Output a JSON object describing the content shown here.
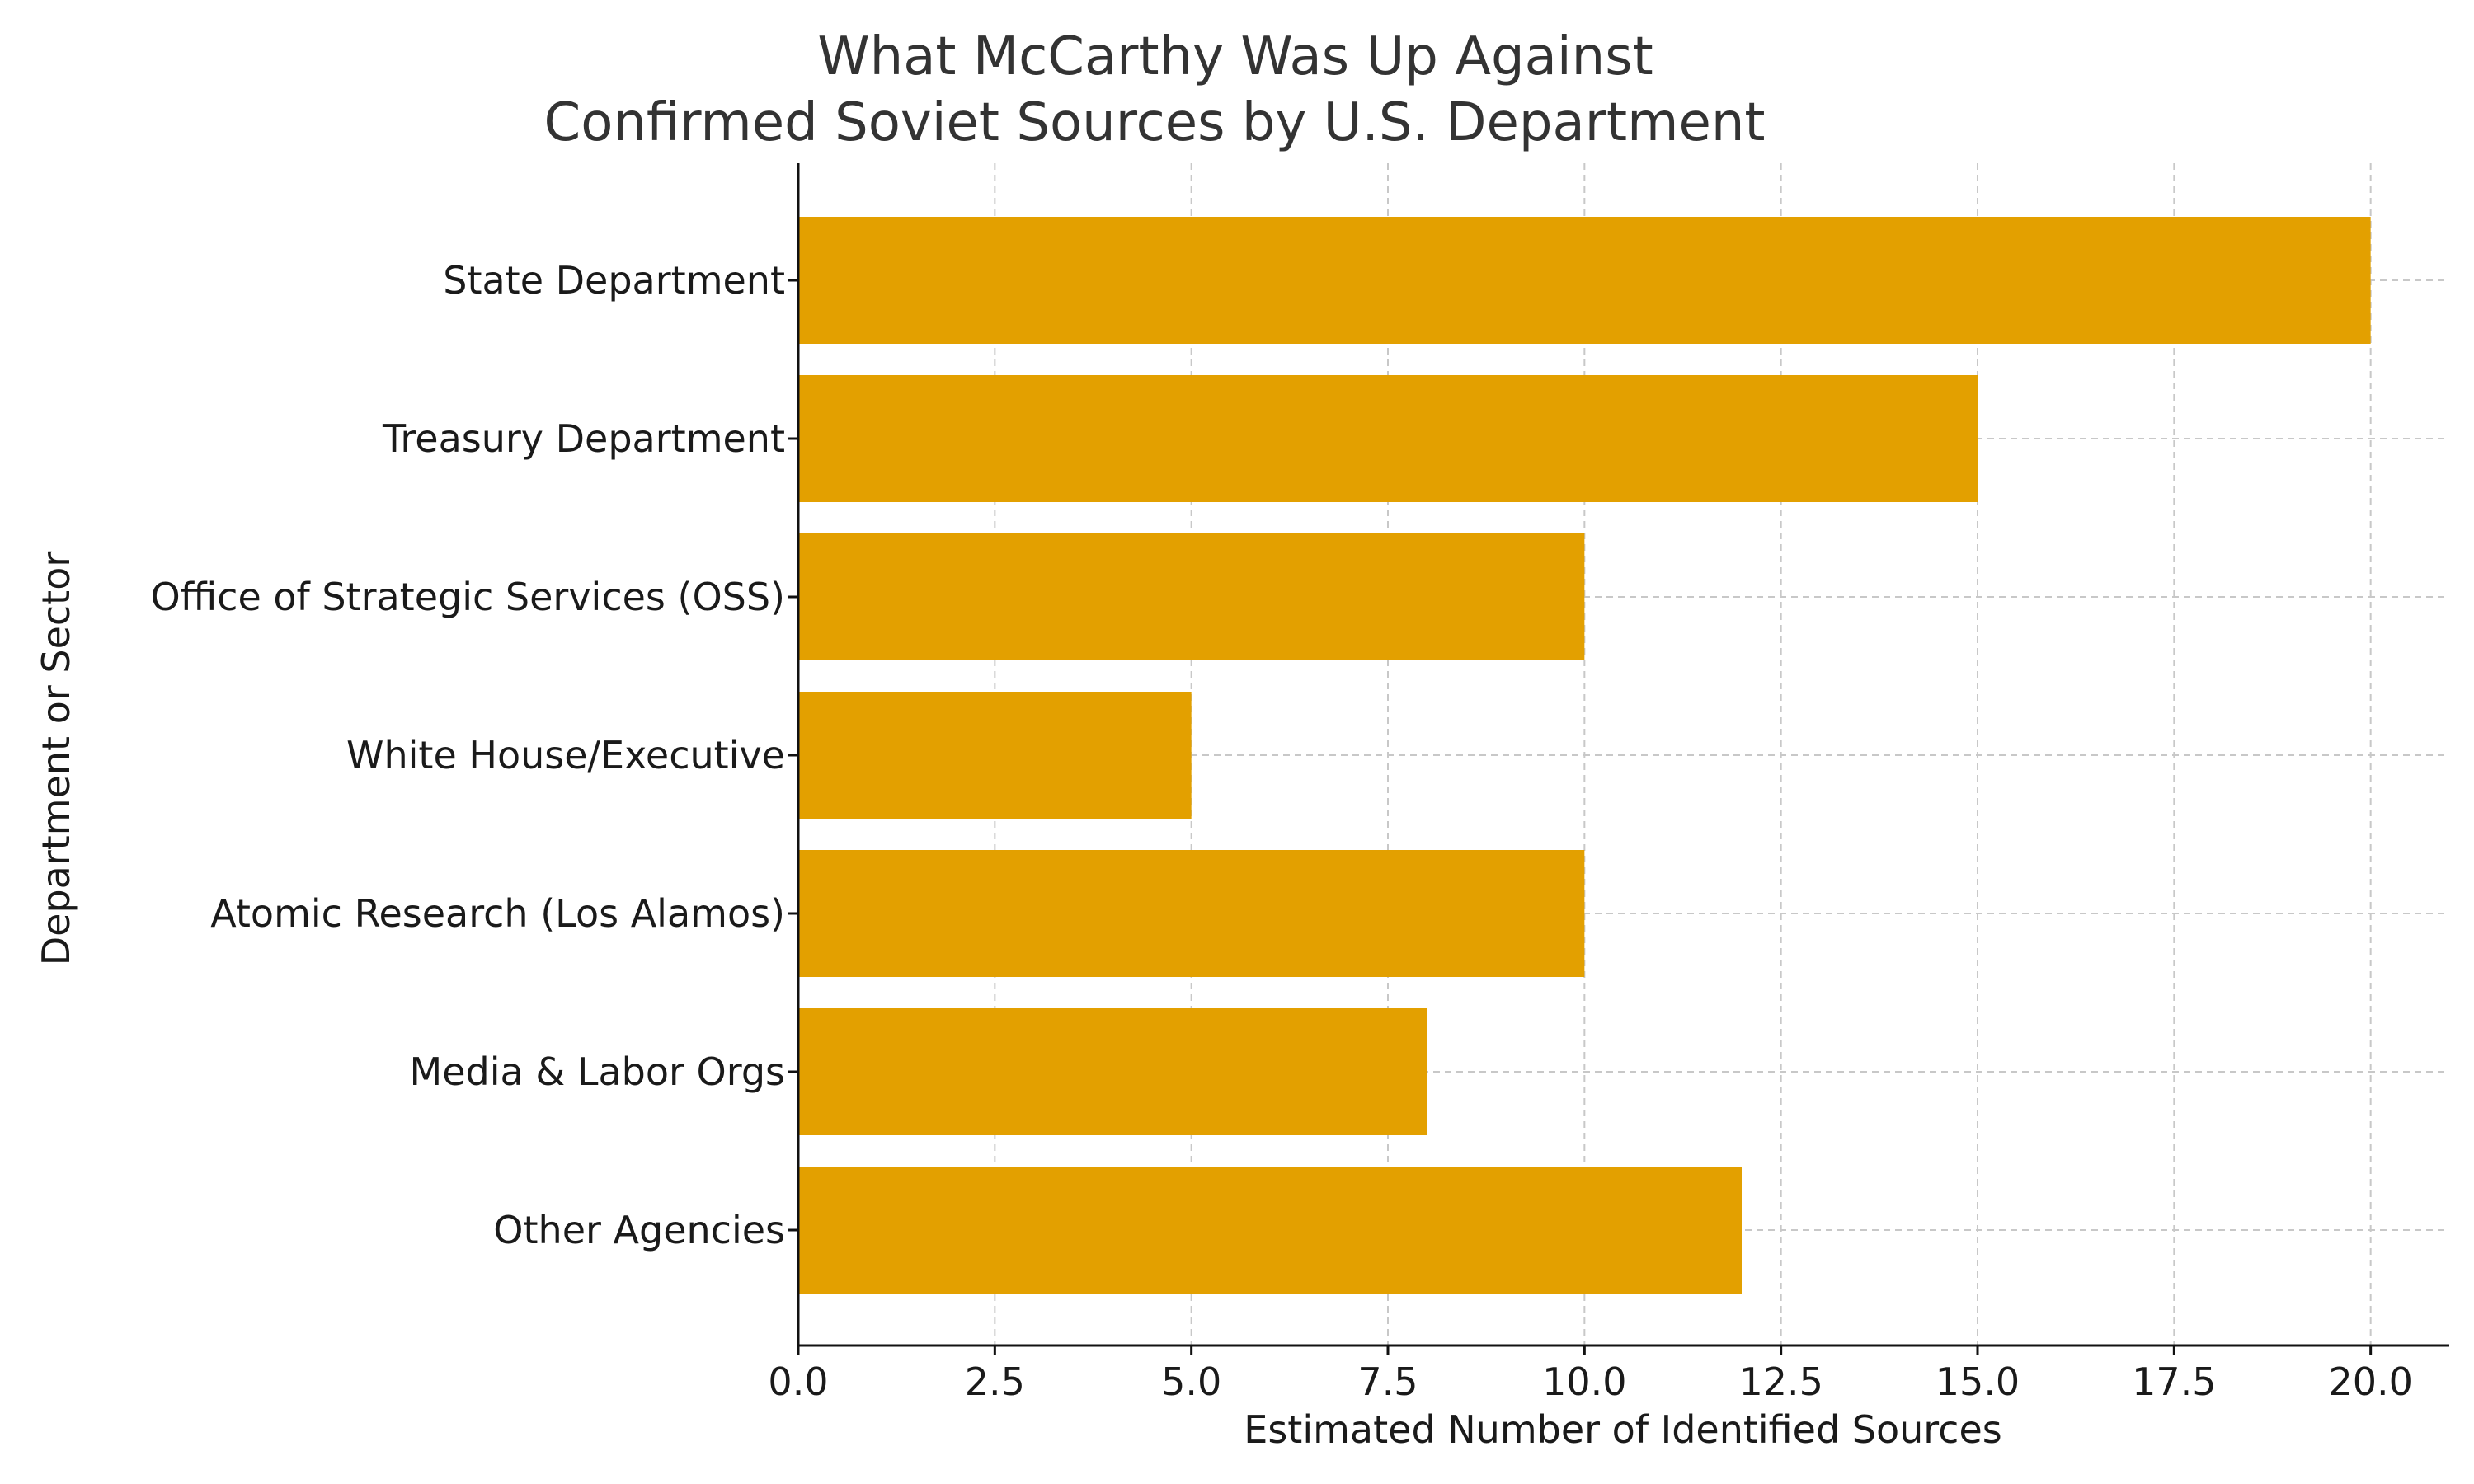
{
  "chart_data": {
    "type": "bar",
    "orientation": "horizontal",
    "title_lines": [
      "What McCarthy Was Up Against",
      "Confirmed Soviet Sources by U.S. Department"
    ],
    "xlabel": "Estimated Number of Identified Sources",
    "ylabel": "Department or Sector",
    "categories": [
      "State Department",
      "Treasury Department",
      "Office of Strategic Services (OSS)",
      "White House/Executive",
      "Atomic Research (Los Alamos)",
      "Media & Labor Orgs",
      "Other Agencies"
    ],
    "values": [
      20,
      15,
      10,
      5,
      10,
      8,
      12
    ],
    "xlim": [
      0,
      21
    ],
    "xticks": [
      "0.0",
      "2.5",
      "5.0",
      "7.5",
      "10.0",
      "12.5",
      "15.0",
      "17.5",
      "20.0"
    ],
    "grid": true,
    "bar_color": "#e3a000"
  }
}
